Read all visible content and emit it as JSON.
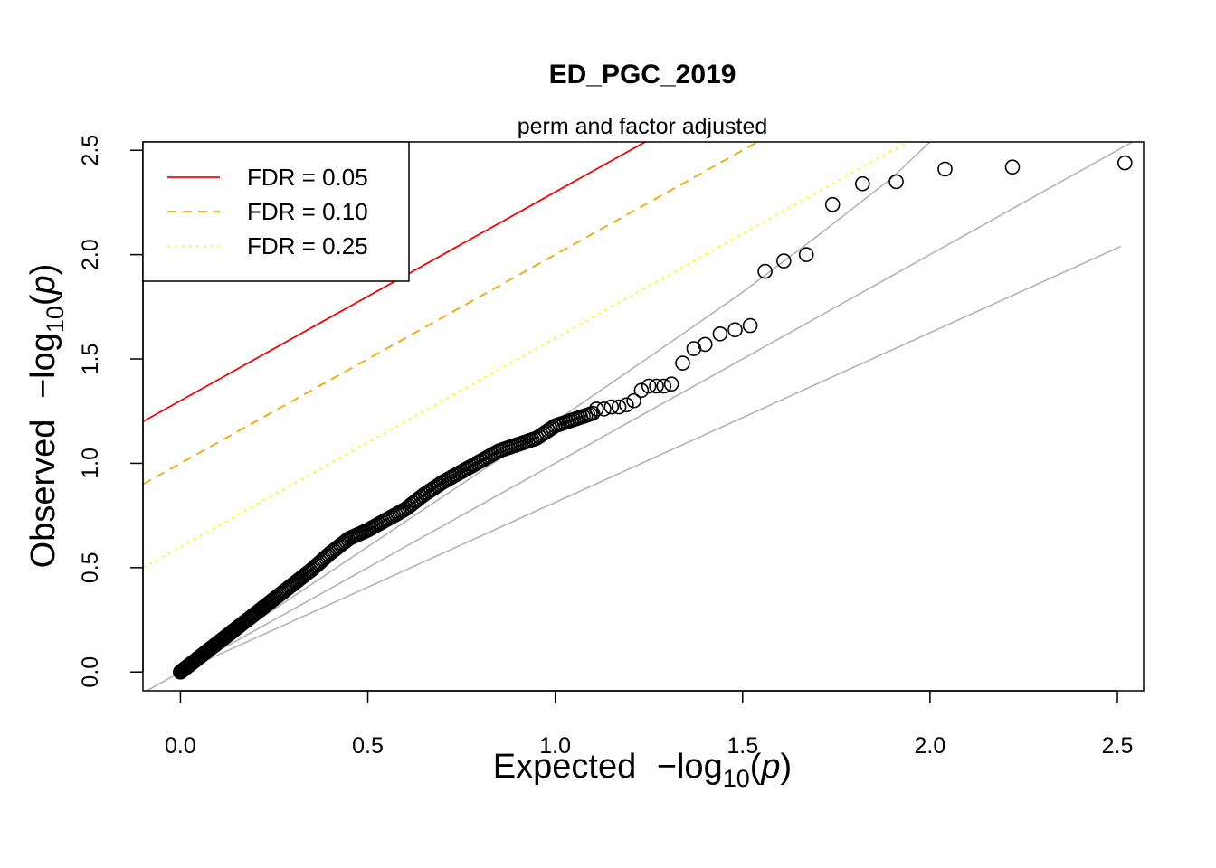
{
  "chart_data": {
    "type": "scatter",
    "title": "ED_PGC_2019",
    "subtitle": "perm and factor adjusted",
    "xlabel": {
      "prefix": "Expected ",
      "func": "−log",
      "sub": "10",
      "arg": "p"
    },
    "ylabel": {
      "prefix": "Observed ",
      "func": "−log",
      "sub": "10",
      "arg": "p"
    },
    "xlim": [
      -0.1,
      2.57
    ],
    "ylim": [
      -0.09,
      2.54
    ],
    "xticks": [
      "0.0",
      "0.5",
      "1.0",
      "1.5",
      "2.0",
      "2.5"
    ],
    "yticks": [
      "0.0",
      "0.5",
      "1.0",
      "1.5",
      "2.0",
      "2.5"
    ],
    "grid": false,
    "legend_position": "top-left",
    "legend": [
      {
        "label": "FDR = 0.05",
        "color": "#ff0000",
        "style": "solid"
      },
      {
        "label": "FDR = 0.10",
        "color": "#ffa500",
        "style": "dashed"
      },
      {
        "label": "FDR = 0.25",
        "color": "#ffff00",
        "style": "dotted"
      }
    ],
    "fdr_lines": [
      {
        "intercept": 1.3,
        "slope": 1,
        "color": "#ff0000",
        "style": "solid"
      },
      {
        "intercept": 1.0,
        "slope": 1,
        "color": "#ffa500",
        "style": "dashed"
      },
      {
        "intercept": 0.6,
        "slope": 1,
        "color": "#ffff00",
        "style": "dotted"
      }
    ],
    "reference_lines_color": "#b3b3b3",
    "reference_lines": [
      {
        "x": [
          -0.1,
          2.55
        ],
        "y": [
          -0.1,
          2.55
        ]
      },
      {
        "x": [
          0.0,
          2.51
        ],
        "y": [
          0.0,
          2.04
        ]
      },
      {
        "x": [
          0.0,
          0.5,
          1.0,
          1.3,
          1.5,
          1.7,
          1.9,
          2.0
        ],
        "y": [
          0.0,
          0.6,
          1.2,
          1.57,
          1.82,
          2.09,
          2.37,
          2.54
        ]
      }
    ],
    "points": {
      "x": [
        1.11,
        1.13,
        1.15,
        1.17,
        1.19,
        1.21,
        1.23,
        1.25,
        1.27,
        1.29,
        1.31,
        1.34,
        1.37,
        1.4,
        1.44,
        1.48,
        1.52,
        1.56,
        1.61,
        1.67,
        1.74,
        1.82,
        1.91,
        2.04,
        2.22,
        2.52
      ],
      "y": [
        1.26,
        1.26,
        1.27,
        1.27,
        1.28,
        1.3,
        1.35,
        1.37,
        1.37,
        1.37,
        1.38,
        1.48,
        1.55,
        1.57,
        1.62,
        1.64,
        1.66,
        1.92,
        1.97,
        2.0,
        2.24,
        2.34,
        2.35,
        2.41,
        2.42,
        2.44
      ],
      "dense_curve": {
        "x": [
          0.0,
          0.05,
          0.1,
          0.15,
          0.2,
          0.25,
          0.3,
          0.35,
          0.4,
          0.45,
          0.5,
          0.55,
          0.6,
          0.65,
          0.7,
          0.75,
          0.8,
          0.85,
          0.9,
          0.95,
          1.0,
          1.05,
          1.1
        ],
        "y": [
          0.0,
          0.07,
          0.14,
          0.21,
          0.28,
          0.35,
          0.42,
          0.49,
          0.57,
          0.64,
          0.68,
          0.73,
          0.78,
          0.85,
          0.91,
          0.96,
          1.01,
          1.06,
          1.09,
          1.12,
          1.18,
          1.21,
          1.24
        ]
      }
    }
  }
}
